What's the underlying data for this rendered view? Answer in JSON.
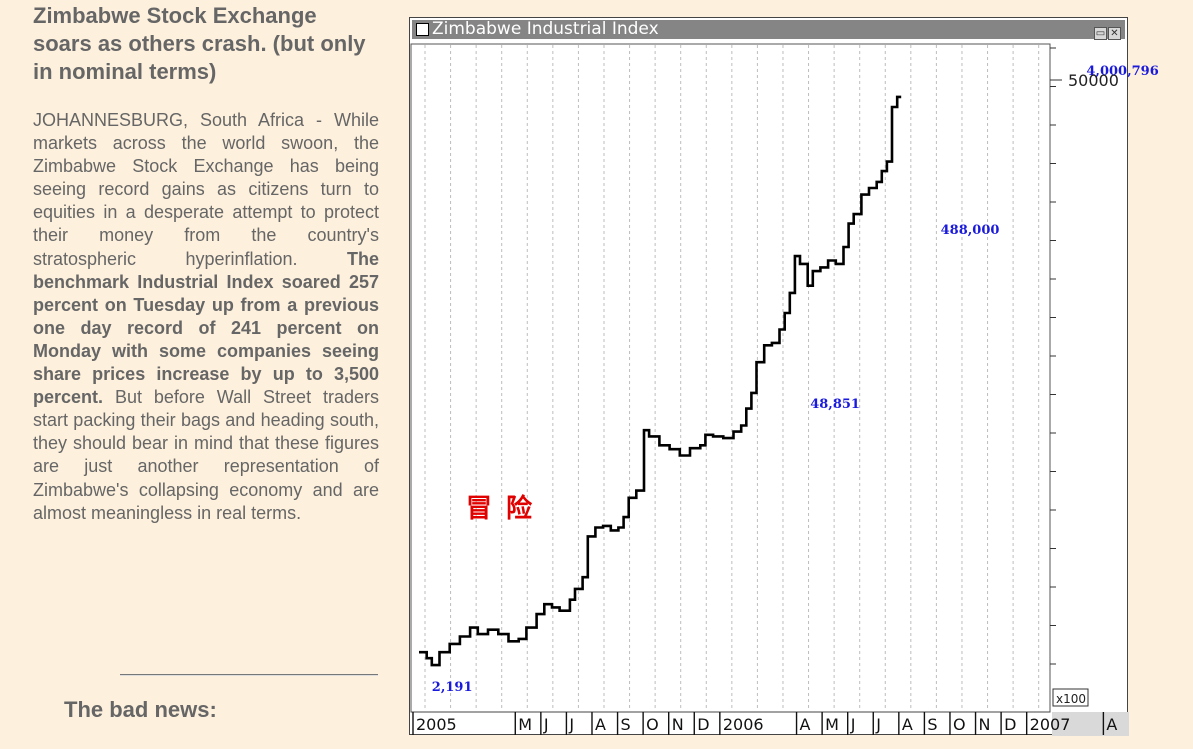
{
  "article": {
    "headline": "Zimbabwe Stock Exchange soars as others crash. (but only in nominal terms)",
    "body_intro": "JOHANNESBURG, South Africa - While markets across the world swoon, the Zimbabwe Stock Exchange has being seeing record gains as citizens turn to equities in a desperate attempt to protect their money from the country's stratospheric hyperinflation. ",
    "body_bold": "The benchmark Industrial Index soared 257 percent on Tuesday up from a previous one day record of 241 percent on Monday with some companies seeing share prices increase by up to 3,500 percent.",
    "body_outro": " But before Wall Street traders start packing their bags and heading south, they should bear in mind that these figures are just another representation of Zimbabwe's collapsing economy and are almost meaningless in real terms.",
    "bad_news_heading": "The bad news:"
  },
  "window": {
    "title": "Zimbabwe Industrial Index",
    "restore_glyph": "▭",
    "close_glyph": "✕"
  },
  "watermark": "冒险",
  "colors": {
    "background": "#fdf0dd",
    "annotation": "#1a1adc",
    "watermark": "#e00000",
    "line": "#000000"
  },
  "chart_data": {
    "type": "line",
    "title": "Zimbabwe Industrial Index",
    "scale": "log",
    "grid": "vertical dashed monthly gridlines",
    "x_tick_labels": [
      "2005",
      "M",
      "J",
      "J",
      "A",
      "S",
      "O",
      "N",
      "D",
      "2006",
      "A",
      "M",
      "J",
      "J",
      "A",
      "S",
      "O",
      "N",
      "D",
      "2007",
      "A"
    ],
    "x_tick_months": [
      0,
      4,
      5,
      6,
      7,
      8,
      9,
      10,
      11,
      12,
      15,
      16,
      17,
      18,
      19,
      20,
      21,
      22,
      23,
      24,
      27
    ],
    "y_tick_labels": [
      "50000"
    ],
    "y_tick_values": [
      5000000
    ],
    "y_multiplier_label": "x100",
    "ylim": [
      1800,
      5000000
    ],
    "annotations": [
      {
        "text": "2,191",
        "month": 0.5,
        "value": 2191
      },
      {
        "text": "48,851",
        "month": 15.3,
        "value": 48851
      },
      {
        "text": "488,000",
        "month": 20.4,
        "value": 488000
      },
      {
        "text": "4,000,796",
        "month": 26.1,
        "value": 4000796
      }
    ],
    "series": [
      {
        "points": [
          [
            0.0,
            2600
          ],
          [
            0.3,
            2400
          ],
          [
            0.5,
            2191
          ],
          [
            0.8,
            2600
          ],
          [
            1.2,
            2900
          ],
          [
            1.6,
            3200
          ],
          [
            2.0,
            3600
          ],
          [
            2.3,
            3300
          ],
          [
            2.7,
            3500
          ],
          [
            3.1,
            3300
          ],
          [
            3.5,
            3000
          ],
          [
            3.9,
            3100
          ],
          [
            4.2,
            3600
          ],
          [
            4.6,
            4300
          ],
          [
            4.9,
            4900
          ],
          [
            5.2,
            4700
          ],
          [
            5.5,
            4500
          ],
          [
            5.9,
            5200
          ],
          [
            6.1,
            6000
          ],
          [
            6.4,
            7000
          ],
          [
            6.6,
            12000
          ],
          [
            6.9,
            13500
          ],
          [
            7.2,
            13800
          ],
          [
            7.5,
            13000
          ],
          [
            7.8,
            13500
          ],
          [
            8.0,
            15500
          ],
          [
            8.2,
            20000
          ],
          [
            8.5,
            22000
          ],
          [
            8.8,
            48851
          ],
          [
            9.0,
            45000
          ],
          [
            9.4,
            40000
          ],
          [
            9.8,
            38000
          ],
          [
            10.2,
            35000
          ],
          [
            10.6,
            38500
          ],
          [
            11.0,
            40000
          ],
          [
            11.2,
            46000
          ],
          [
            11.5,
            45000
          ],
          [
            11.9,
            44000
          ],
          [
            12.3,
            48000
          ],
          [
            12.6,
            52000
          ],
          [
            12.8,
            65000
          ],
          [
            13.0,
            80000
          ],
          [
            13.2,
            120000
          ],
          [
            13.5,
            150000
          ],
          [
            13.8,
            155000
          ],
          [
            14.1,
            185000
          ],
          [
            14.3,
            230000
          ],
          [
            14.5,
            300000
          ],
          [
            14.7,
            488000
          ],
          [
            14.9,
            440000
          ],
          [
            15.2,
            330000
          ],
          [
            15.4,
            400000
          ],
          [
            15.7,
            420000
          ],
          [
            16.0,
            460000
          ],
          [
            16.3,
            440000
          ],
          [
            16.6,
            550000
          ],
          [
            16.8,
            750000
          ],
          [
            17.0,
            850000
          ],
          [
            17.3,
            1100000
          ],
          [
            17.6,
            1200000
          ],
          [
            17.9,
            1300000
          ],
          [
            18.1,
            1500000
          ],
          [
            18.3,
            1700000
          ],
          [
            18.5,
            3500000
          ],
          [
            18.7,
            4000796
          ]
        ]
      }
    ]
  }
}
